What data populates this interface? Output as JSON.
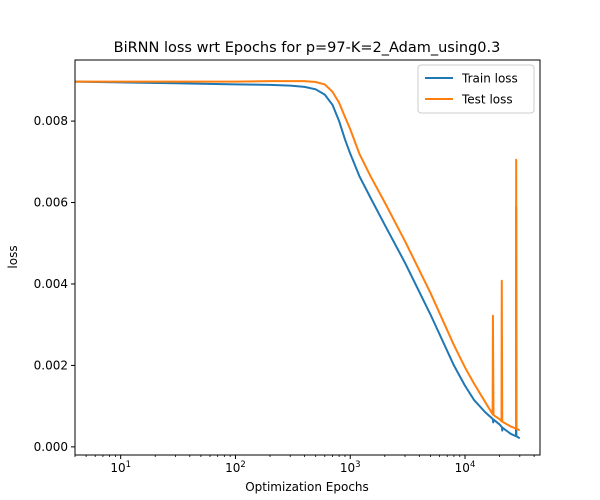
{
  "chart_data": {
    "type": "line",
    "title": "BiRNN loss wrt Epochs for p=97-K=2_Adam_using0.3",
    "xlabel": "Optimization Epochs",
    "ylabel": "loss",
    "xscale": "log",
    "xlim": [
      4,
      45000
    ],
    "ylim": [
      -0.0002,
      0.0095
    ],
    "grid": false,
    "legend_position": "top-right",
    "xticks": [
      {
        "value": 10,
        "base": "10",
        "exp": "1"
      },
      {
        "value": 100,
        "base": "10",
        "exp": "2"
      },
      {
        "value": 1000,
        "base": "10",
        "exp": "3"
      },
      {
        "value": 10000,
        "base": "10",
        "exp": "4"
      }
    ],
    "yticks": [
      {
        "value": 0.0,
        "label": "0.000"
      },
      {
        "value": 0.002,
        "label": "0.002"
      },
      {
        "value": 0.004,
        "label": "0.004"
      },
      {
        "value": 0.006,
        "label": "0.006"
      },
      {
        "value": 0.008,
        "label": "0.008"
      }
    ],
    "series": [
      {
        "name": "Train loss",
        "color": "#1f77b4",
        "points": [
          [
            4,
            0.00897
          ],
          [
            10,
            0.00895
          ],
          [
            30,
            0.00893
          ],
          [
            100,
            0.0089
          ],
          [
            200,
            0.00889
          ],
          [
            300,
            0.00887
          ],
          [
            400,
            0.00884
          ],
          [
            500,
            0.00878
          ],
          [
            600,
            0.00865
          ],
          [
            700,
            0.0084
          ],
          [
            800,
            0.008
          ],
          [
            900,
            0.00755
          ],
          [
            1000,
            0.0072
          ],
          [
            1200,
            0.00665
          ],
          [
            1500,
            0.00612
          ],
          [
            2000,
            0.00545
          ],
          [
            3000,
            0.00452
          ],
          [
            5000,
            0.00325
          ],
          [
            8000,
            0.002
          ],
          [
            10000,
            0.0015
          ],
          [
            12000,
            0.00115
          ],
          [
            15000,
            0.00085
          ],
          [
            17500,
            0.00068
          ],
          [
            17600,
            0.0006
          ],
          [
            17700,
            0.00067
          ],
          [
            20000,
            0.00055
          ],
          [
            21000,
            0.00048
          ],
          [
            21100,
            0.0004
          ],
          [
            21200,
            0.00047
          ],
          [
            25000,
            0.00032
          ],
          [
            27800,
            0.00026
          ],
          [
            27900,
            0.0059
          ],
          [
            28000,
            0.00026
          ],
          [
            30000,
            0.00021
          ]
        ]
      },
      {
        "name": "Test loss",
        "color": "#ff7f0e",
        "points": [
          [
            4,
            0.00897
          ],
          [
            10,
            0.00897
          ],
          [
            30,
            0.00897
          ],
          [
            100,
            0.00897
          ],
          [
            200,
            0.00898
          ],
          [
            300,
            0.00898
          ],
          [
            400,
            0.00898
          ],
          [
            500,
            0.00896
          ],
          [
            600,
            0.0089
          ],
          [
            700,
            0.00872
          ],
          [
            800,
            0.00845
          ],
          [
            900,
            0.0081
          ],
          [
            1000,
            0.0078
          ],
          [
            1200,
            0.0072
          ],
          [
            1500,
            0.00665
          ],
          [
            2000,
            0.006
          ],
          [
            3000,
            0.00505
          ],
          [
            5000,
            0.00378
          ],
          [
            8000,
            0.0025
          ],
          [
            10000,
            0.00195
          ],
          [
            12000,
            0.00155
          ],
          [
            15000,
            0.0011
          ],
          [
            17400,
            0.0008
          ],
          [
            17500,
            0.00322
          ],
          [
            17700,
            0.00078
          ],
          [
            20000,
            0.00068
          ],
          [
            20800,
            0.00063
          ],
          [
            20900,
            0.00408
          ],
          [
            21100,
            0.00062
          ],
          [
            25000,
            0.0005
          ],
          [
            27800,
            0.00045
          ],
          [
            27900,
            0.00705
          ],
          [
            28100,
            0.00044
          ],
          [
            30000,
            0.00041
          ]
        ]
      }
    ]
  }
}
